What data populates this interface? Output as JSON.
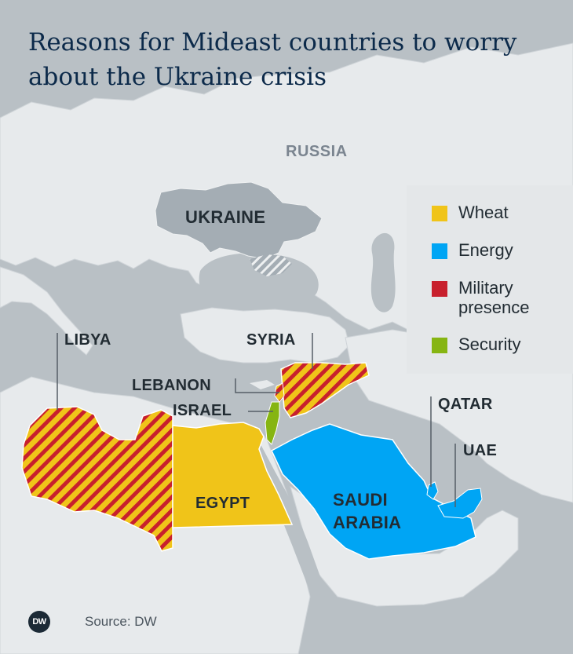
{
  "title": "Reasons for Mideast countries to worry about the Ukraine crisis",
  "labels": {
    "russia": "RUSSIA",
    "ukraine": "UKRAINE",
    "libya": "LIBYA",
    "syria": "SYRIA",
    "lebanon": "LEBANON",
    "israel": "ISRAEL",
    "egypt": "EGYPT",
    "saudi_arabia_line1": "SAUDI",
    "saudi_arabia_line2": "ARABIA",
    "qatar": "QATAR",
    "uae": "UAE"
  },
  "legend": [
    {
      "label": "Wheat",
      "color": "#f0c419"
    },
    {
      "label": "Energy",
      "color": "#00a5f4"
    },
    {
      "label_line1": "Military",
      "label_line2": "presence",
      "color": "#c8202d"
    },
    {
      "label": "Security",
      "color": "#86b512"
    }
  ],
  "colors": {
    "sea": "#b9c0c5",
    "land": "#e7eaec",
    "ukraine": "#a4adb4",
    "wheat": "#f0c419",
    "energy": "#00a5f4",
    "military": "#c8202d",
    "security": "#86b512"
  },
  "footer": {
    "logo_text": "DW",
    "source": "Source: DW"
  }
}
